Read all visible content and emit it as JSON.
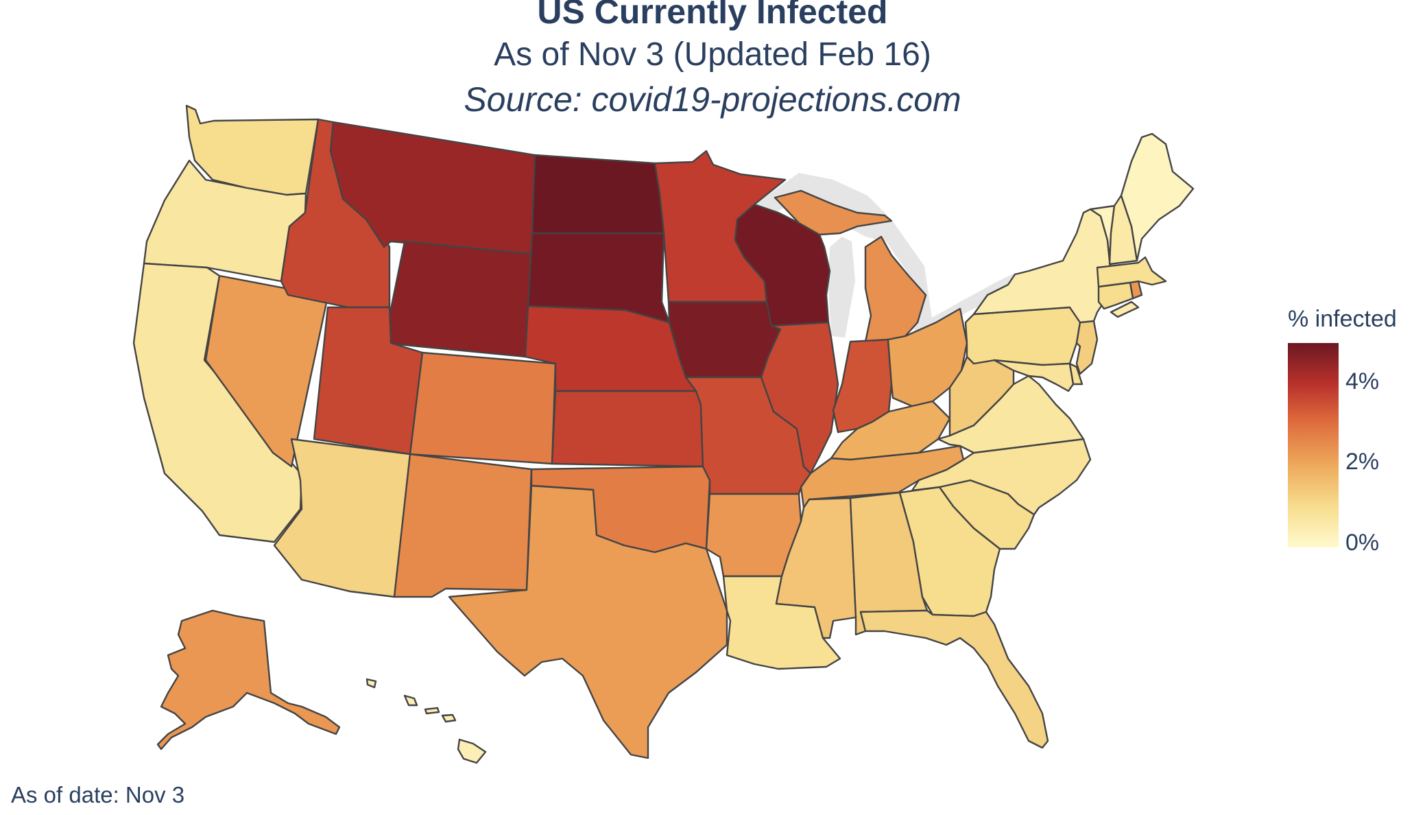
{
  "title": "US Currently Infected",
  "subtitle": "As of Nov 3 (Updated Feb 16)",
  "source": "Source: covid19-projections.com",
  "footer": "As of date: Nov 3",
  "map_type": "choropleth",
  "colorbar": {
    "title": "% infected",
    "ticks": [
      "0%",
      "2%",
      "4%"
    ],
    "range": [
      0,
      5
    ],
    "colorscale": [
      "#fffacd",
      "#f7dd8e",
      "#eeaa5c",
      "#dd6a3c",
      "#b9312b",
      "#6b1823"
    ]
  },
  "chart_data": {
    "type": "choropleth",
    "metric": "% infected",
    "regions": [
      {
        "state": "WA",
        "value": 1.0
      },
      {
        "state": "OR",
        "value": 0.7
      },
      {
        "state": "CA",
        "value": 0.7
      },
      {
        "state": "NV",
        "value": 2.2
      },
      {
        "state": "ID",
        "value": 3.6
      },
      {
        "state": "MT",
        "value": 4.4
      },
      {
        "state": "WY",
        "value": 4.6
      },
      {
        "state": "UT",
        "value": 3.6
      },
      {
        "state": "AZ",
        "value": 1.2
      },
      {
        "state": "CO",
        "value": 2.7
      },
      {
        "state": "NM",
        "value": 2.5
      },
      {
        "state": "ND",
        "value": 5.0
      },
      {
        "state": "SD",
        "value": 4.9
      },
      {
        "state": "NE",
        "value": 3.9
      },
      {
        "state": "KS",
        "value": 3.7
      },
      {
        "state": "OK",
        "value": 2.7
      },
      {
        "state": "TX",
        "value": 2.2
      },
      {
        "state": "MN",
        "value": 3.8
      },
      {
        "state": "IA",
        "value": 4.8
      },
      {
        "state": "MO",
        "value": 3.5
      },
      {
        "state": "AR",
        "value": 2.3
      },
      {
        "state": "LA",
        "value": 0.9
      },
      {
        "state": "WI",
        "value": 4.9
      },
      {
        "state": "IL",
        "value": 3.6
      },
      {
        "state": "MI",
        "value": 2.4
      },
      {
        "state": "IN",
        "value": 3.4
      },
      {
        "state": "OH",
        "value": 2.1
      },
      {
        "state": "KY",
        "value": 1.9
      },
      {
        "state": "TN",
        "value": 2.1
      },
      {
        "state": "MS",
        "value": 1.5
      },
      {
        "state": "AL",
        "value": 1.4
      },
      {
        "state": "GA",
        "value": 1.0
      },
      {
        "state": "FL",
        "value": 1.2
      },
      {
        "state": "SC",
        "value": 1.0
      },
      {
        "state": "NC",
        "value": 0.8
      },
      {
        "state": "VA",
        "value": 0.7
      },
      {
        "state": "WV",
        "value": 1.4
      },
      {
        "state": "PA",
        "value": 1.0
      },
      {
        "state": "NY",
        "value": 0.5
      },
      {
        "state": "VT",
        "value": 0.2
      },
      {
        "state": "NH",
        "value": 0.6
      },
      {
        "state": "ME",
        "value": 0.2
      },
      {
        "state": "MA",
        "value": 0.9
      },
      {
        "state": "RI",
        "value": 2.3
      },
      {
        "state": "CT",
        "value": 1.0
      },
      {
        "state": "NJ",
        "value": 1.3
      },
      {
        "state": "DE",
        "value": 0.9
      },
      {
        "state": "MD",
        "value": 0.8
      },
      {
        "state": "AK",
        "value": 2.3
      },
      {
        "state": "HI",
        "value": 0.4
      }
    ]
  }
}
